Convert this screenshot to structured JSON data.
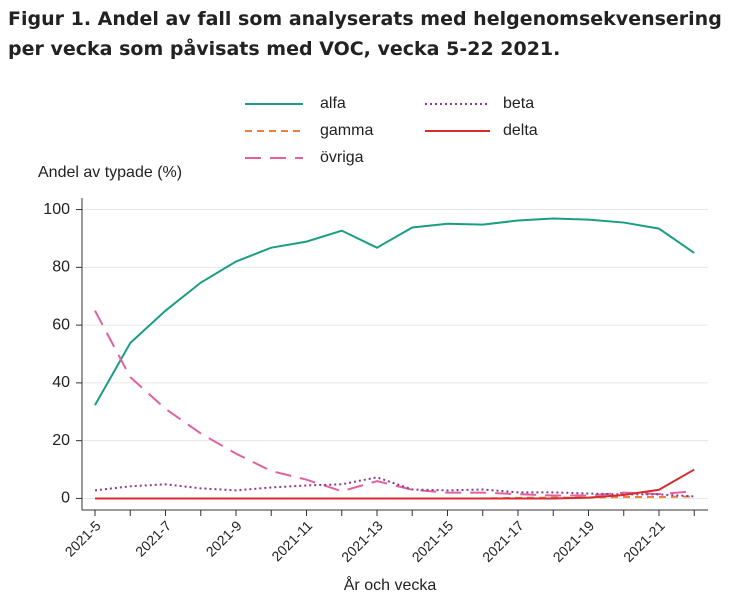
{
  "chart_data": {
    "type": "line",
    "title": "Figur 1. Andel av fall som analyserats med helgenomsekvensering per vecka som påvisats med VOC, vecka 5-22 2021.",
    "y_label": "Andel av typade (%)",
    "x_label": "År och vecka",
    "categories": [
      "2021-5",
      null,
      "2021-7",
      null,
      "2021-9",
      null,
      "2021-11",
      null,
      "2021-13",
      null,
      "2021-15",
      null,
      "2021-17",
      null,
      "2021-19",
      null,
      "2021-21",
      null
    ],
    "series": [
      {
        "name": "alfa",
        "color": "#1a9e82",
        "dash": "solid",
        "values": [
          32.3,
          53.8,
          65,
          74.7,
          82,
          86.8,
          88.9,
          92.7,
          86.8,
          93.8,
          95.1,
          94.8,
          96.2,
          96.9,
          96.5,
          95.5,
          93.4,
          85
        ]
      },
      {
        "name": "gamma",
        "color": "#f07f3c",
        "dash": "dashed",
        "values": [
          0,
          0,
          0,
          0,
          0,
          0,
          0,
          0,
          0,
          0,
          0,
          0,
          0.2,
          0.3,
          0.3,
          0.5,
          0.5,
          0.7
        ]
      },
      {
        "name": "övriga",
        "color": "#e0619f",
        "dash": "longdash",
        "values": [
          65,
          42,
          31,
          22.5,
          15.5,
          9.5,
          6.5,
          2.5,
          6,
          3,
          2,
          2,
          1.5,
          1,
          1,
          2,
          1.5,
          2.5
        ]
      },
      {
        "name": "beta",
        "color": "#8b3a8f",
        "dash": "dotted",
        "values": [
          2.8,
          4.2,
          4.9,
          3.5,
          2.8,
          3.8,
          4.5,
          4.9,
          7.3,
          3.1,
          2.8,
          3.1,
          2.1,
          2.1,
          1.7,
          1.4,
          1.4,
          0.7
        ]
      },
      {
        "name": "delta",
        "color": "#d62c2c",
        "dash": "solid",
        "values": [
          0,
          0,
          0,
          0,
          0,
          0,
          0,
          0,
          0,
          0,
          0,
          0,
          0,
          0,
          0.3,
          1.2,
          3,
          10
        ]
      }
    ],
    "ylim": [
      -4,
      104
    ],
    "yticks": [
      0,
      20,
      40,
      60,
      80,
      100
    ],
    "grid": true
  }
}
